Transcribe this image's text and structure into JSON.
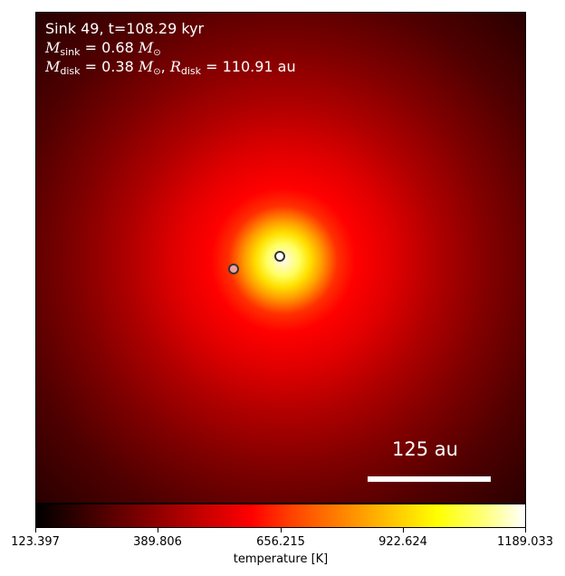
{
  "title_line1": "Sink 49, t=108.29 kyr",
  "sink_mass": {
    "symbol": "M",
    "subscript": "sink",
    "value": "= 0.68",
    "unit_symbol": "M",
    "unit_subscript": "⊙"
  },
  "disk_line": {
    "mass_symbol": "M",
    "mass_subscript": "disk",
    "mass_value": "= 0.38",
    "unit_symbol": "M",
    "unit_subscript": "⊙",
    "radius_symbol": "R",
    "radius_subscript": "disk",
    "radius_value": "= 110.91 au"
  },
  "scale_bar_label": "125 au",
  "colorbar": {
    "label": "temperature [K]",
    "ticks": [
      "123.397",
      "389.806",
      "656.215",
      "922.624",
      "1189.033"
    ],
    "colormap": "hot"
  },
  "sinks": [
    {
      "name": "primary",
      "fill": "#ffffff",
      "edge": "#333333"
    },
    {
      "name": "secondary",
      "fill": "#f0a0a0",
      "edge": "#333333"
    }
  ]
}
